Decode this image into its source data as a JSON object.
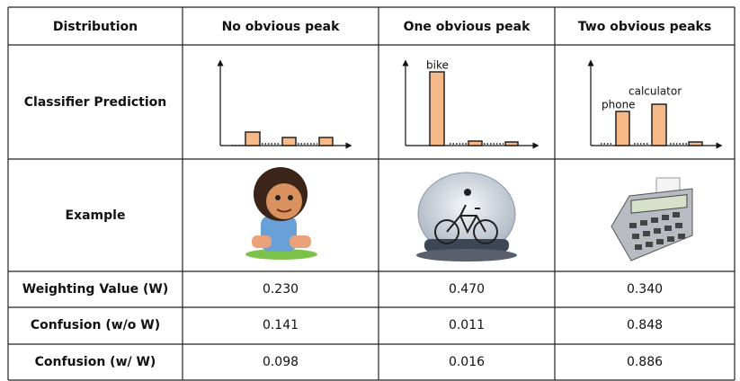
{
  "table": {
    "header": [
      "Distribution",
      "No obvious peak",
      "One obvious peak",
      "Two obvious peaks"
    ],
    "prediction": {
      "label": "Classifier Prediction",
      "one_peak_labels": [
        "bike"
      ],
      "two_peak_labels": [
        "phone",
        "calculator"
      ]
    },
    "example": {
      "label": "Example"
    },
    "rows": [
      [
        "Weighting Value (W)",
        "0.230",
        "0.470",
        "0.340"
      ],
      [
        "Confusion (w/o W)",
        "0.141",
        "0.011",
        "0.848"
      ],
      [
        "Confusion (w/ W)",
        "0.098",
        "0.016",
        "0.886"
      ]
    ]
  }
}
